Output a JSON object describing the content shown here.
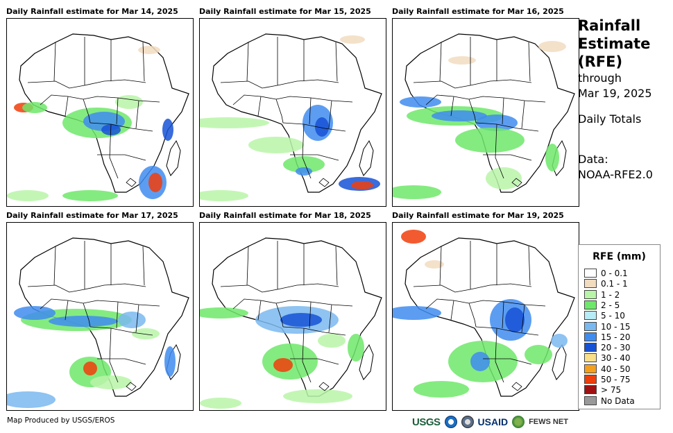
{
  "panels": [
    {
      "title": "Daily Rainfall estimate for Mar 14, 2025"
    },
    {
      "title": "Daily Rainfall estimate for Mar 15, 2025"
    },
    {
      "title": "Daily Rainfall estimate for Mar 16, 2025"
    },
    {
      "title": "Daily Rainfall estimate for Mar 17, 2025"
    },
    {
      "title": "Daily Rainfall estimate for Mar 18, 2025"
    },
    {
      "title": "Daily Rainfall estimate for Mar 19, 2025"
    }
  ],
  "side": {
    "line1": "Rainfall",
    "line2": "Estimate",
    "line3": "(RFE)",
    "line4": "through",
    "line5": "Mar 19, 2025",
    "line6": "Daily Totals",
    "line7": "Data:",
    "line8": "NOAA-RFE2.0"
  },
  "legend": {
    "title": "RFE (mm)",
    "items": [
      {
        "label": "0 - 0.1",
        "color": "#ffffff"
      },
      {
        "label": "0.1 - 1",
        "color": "#f2dcc0"
      },
      {
        "label": "1 - 2",
        "color": "#b8f5a8"
      },
      {
        "label": "2 - 5",
        "color": "#6ee86a"
      },
      {
        "label": "5 - 10",
        "color": "#b7ecf7"
      },
      {
        "label": "10 - 15",
        "color": "#7ab8f0"
      },
      {
        "label": "15 - 20",
        "color": "#3f8cf0"
      },
      {
        "label": "20 - 30",
        "color": "#1652d6"
      },
      {
        "label": "30 - 40",
        "color": "#fbe08a"
      },
      {
        "label": "40 - 50",
        "color": "#f5a01c"
      },
      {
        "label": "50 - 75",
        "color": "#f03e0a"
      },
      {
        "label": "> 75",
        "color": "#a01010"
      },
      {
        "label": "No Data",
        "color": "#999999"
      }
    ]
  },
  "footer": {
    "credit": "Map Produced by USGS/EROS"
  },
  "logos": {
    "usgs": "USGS",
    "usaid": "USAID",
    "fews": "FEWS NET"
  }
}
